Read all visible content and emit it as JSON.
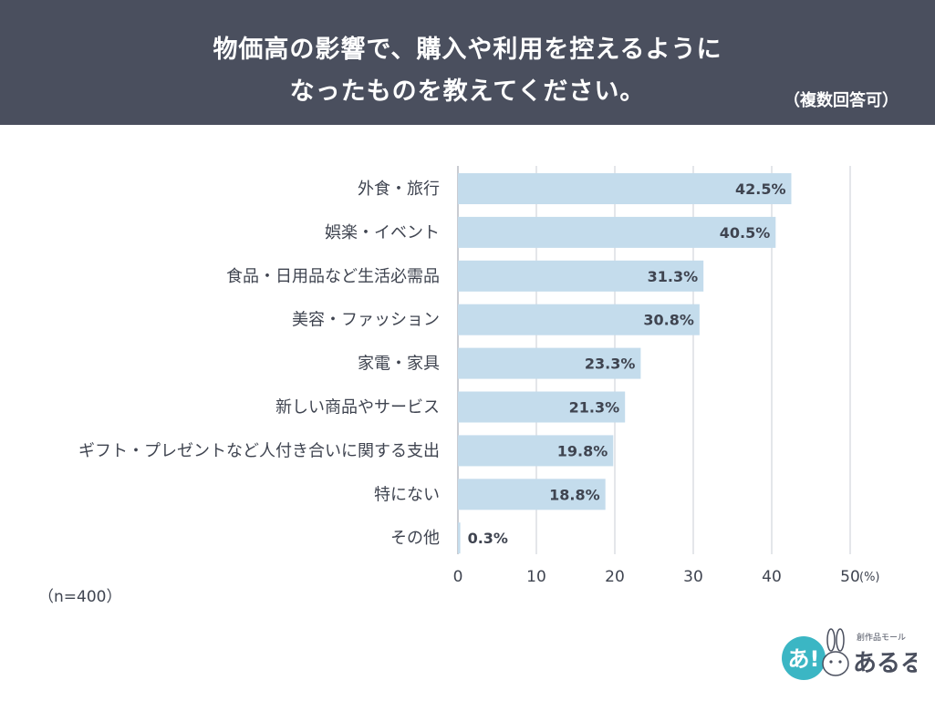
{
  "header": {
    "title_line1": "物価高の影響で、購入や利用を控えるように",
    "title_line2": "なったものを教えてください。",
    "note": "（複数回答可）"
  },
  "chart_data": {
    "type": "bar",
    "orientation": "horizontal",
    "categories": [
      "外食・旅行",
      "娯楽・イベント",
      "食品・日用品など生活必需品",
      "美容・ファッション",
      "家電・家具",
      "新しい商品やサービス",
      "ギフト・プレゼントなど人付き合いに関する支出",
      "特にない",
      "その他"
    ],
    "values": [
      42.5,
      40.5,
      31.3,
      30.8,
      23.3,
      21.3,
      19.8,
      18.8,
      0.3
    ],
    "value_labels": [
      "42.5%",
      "40.5%",
      "31.3%",
      "30.8%",
      "23.3%",
      "21.3%",
      "19.8%",
      "18.8%",
      "0.3%"
    ],
    "xlim": [
      0,
      50
    ],
    "xticks": [
      "0",
      "10",
      "20",
      "30",
      "40",
      "50"
    ],
    "xunit": "(%)",
    "grid": true,
    "bar_color": "#c4dcec"
  },
  "sample": "（n=400）",
  "logo": {
    "small_text": "創作品モール",
    "big_text": "あるる",
    "badge_text": "あ!"
  }
}
